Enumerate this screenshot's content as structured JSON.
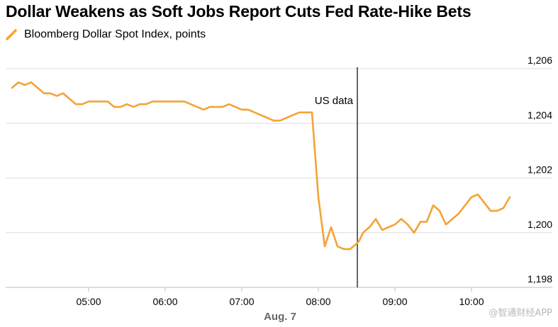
{
  "chart_data": {
    "type": "line",
    "title": "Dollar Weakens as Soft Jobs Report Cuts Fed Rate-Hike Bets",
    "series": [
      {
        "name": "Bloomberg Dollar Spot Index, points",
        "color": "#f4a335",
        "x": [
          "04:00",
          "04:05",
          "04:10",
          "04:15",
          "04:20",
          "04:25",
          "04:30",
          "04:35",
          "04:40",
          "04:45",
          "04:50",
          "04:55",
          "05:00",
          "05:05",
          "05:10",
          "05:15",
          "05:20",
          "05:25",
          "05:30",
          "05:35",
          "05:40",
          "05:45",
          "05:50",
          "05:55",
          "06:00",
          "06:05",
          "06:10",
          "06:15",
          "06:20",
          "06:25",
          "06:30",
          "06:35",
          "06:40",
          "06:45",
          "06:50",
          "06:55",
          "07:00",
          "07:05",
          "07:10",
          "07:15",
          "07:20",
          "07:25",
          "07:30",
          "07:35",
          "07:40",
          "07:45",
          "07:50",
          "07:55",
          "08:00",
          "08:05",
          "08:10",
          "08:15",
          "08:20",
          "08:25",
          "08:30",
          "08:32",
          "08:35",
          "08:40",
          "08:45",
          "08:50",
          "08:55",
          "09:00",
          "09:05",
          "09:10",
          "09:15",
          "09:20",
          "09:25",
          "09:30",
          "09:35",
          "09:40",
          "09:45",
          "09:50",
          "09:55",
          "10:00",
          "10:05",
          "10:10",
          "10:15",
          "10:20",
          "10:25",
          "10:30"
        ],
        "y": [
          1205.3,
          1205.5,
          1205.4,
          1205.5,
          1205.3,
          1205.1,
          1205.1,
          1205.0,
          1205.1,
          1204.9,
          1204.7,
          1204.7,
          1204.8,
          1204.8,
          1204.8,
          1204.8,
          1204.6,
          1204.6,
          1204.7,
          1204.6,
          1204.7,
          1204.7,
          1204.8,
          1204.8,
          1204.8,
          1204.8,
          1204.8,
          1204.8,
          1204.7,
          1204.6,
          1204.5,
          1204.6,
          1204.6,
          1204.6,
          1204.7,
          1204.6,
          1204.5,
          1204.5,
          1204.4,
          1204.3,
          1204.2,
          1204.1,
          1204.1,
          1204.2,
          1204.3,
          1204.4,
          1204.4,
          1204.4,
          1201.3,
          1199.5,
          1200.2,
          1199.5,
          1199.4,
          1199.4,
          1199.6,
          1199.7,
          1200.0,
          1200.2,
          1200.5,
          1200.1,
          1200.2,
          1200.3,
          1200.5,
          1200.3,
          1200.0,
          1200.4,
          1200.4,
          1201.0,
          1200.8,
          1200.3,
          1200.5,
          1200.7,
          1201.0,
          1201.3,
          1201.4,
          1201.1,
          1200.8,
          1200.8,
          1200.9,
          1201.3
        ]
      }
    ],
    "x_ticks": [
      "05:00",
      "06:00",
      "07:00",
      "08:00",
      "09:00",
      "10:00"
    ],
    "x_sublabel": "Aug. 7",
    "y_ticks": [
      "1,198",
      "1,200",
      "1,202",
      "1,204",
      "1,206"
    ],
    "y_tick_values": [
      1198,
      1200,
      1202,
      1204,
      1206
    ],
    "ylim": [
      1198,
      1206
    ],
    "xlim": [
      "03:55",
      "10:35"
    ],
    "grid": true,
    "legend_position": "top-left",
    "annotations": [
      {
        "text": "US data",
        "x": "08:30"
      }
    ]
  },
  "watermark": "@智通财经APP"
}
